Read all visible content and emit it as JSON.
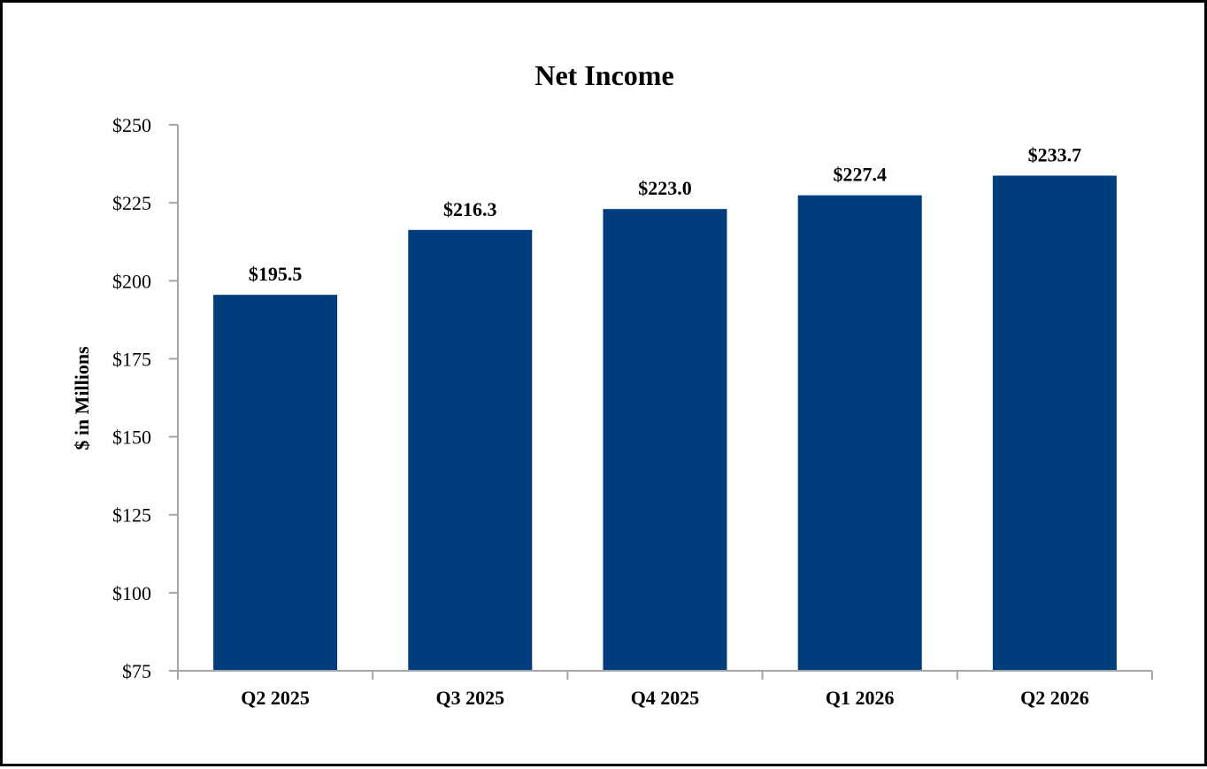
{
  "chart_data": {
    "type": "bar",
    "title": "Net Income",
    "xlabel": "",
    "ylabel": "$ in Millions",
    "categories": [
      "Q2 2025",
      "Q3 2025",
      "Q4 2025",
      "Q1 2026",
      "Q2 2026"
    ],
    "values": [
      195.5,
      216.3,
      223.0,
      227.4,
      233.7
    ],
    "data_labels": [
      "$195.5",
      "$216.3",
      "$223.0",
      "$227.4",
      "$233.7"
    ],
    "ylim": [
      75,
      250
    ],
    "yticks": [
      75,
      100,
      125,
      150,
      175,
      200,
      225,
      250
    ],
    "ytick_labels": [
      "$75",
      "$100",
      "$125",
      "$150",
      "$175",
      "$200",
      "$225",
      "$250"
    ],
    "grid": false,
    "legend": "none",
    "bar_color": "#003d7c"
  }
}
